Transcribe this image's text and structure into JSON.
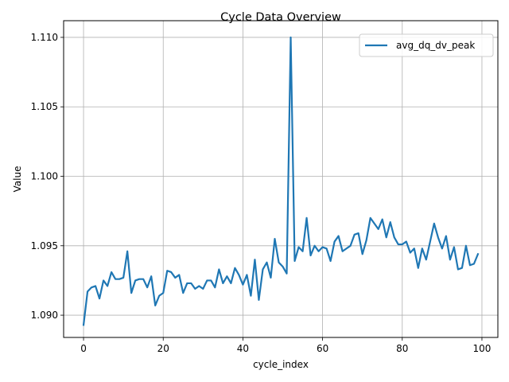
{
  "chart_data": {
    "type": "line",
    "title": "Cycle Data Overview",
    "xlabel": "cycle_index",
    "ylabel": "Value",
    "xlim": [
      -5,
      104
    ],
    "ylim": [
      1.0884,
      1.1112
    ],
    "xticks": [
      0,
      20,
      40,
      60,
      80,
      100
    ],
    "yticks": [
      1.09,
      1.095,
      1.1,
      1.105,
      1.11
    ],
    "ytick_labels": [
      "1.090",
      "1.095",
      "1.100",
      "1.105",
      "1.110"
    ],
    "grid": true,
    "legend_position": "top-right",
    "series": [
      {
        "name": "avg_dq_dv_peak",
        "color": "#1f77b4",
        "x": [
          0,
          1,
          2,
          3,
          4,
          5,
          6,
          7,
          8,
          9,
          10,
          11,
          12,
          13,
          14,
          15,
          16,
          17,
          18,
          19,
          20,
          21,
          22,
          23,
          24,
          25,
          26,
          27,
          28,
          29,
          30,
          31,
          32,
          33,
          34,
          35,
          36,
          37,
          38,
          39,
          40,
          41,
          42,
          43,
          44,
          45,
          46,
          47,
          48,
          49,
          50,
          51,
          52,
          53,
          54,
          55,
          56,
          57,
          58,
          59,
          60,
          61,
          62,
          63,
          64,
          65,
          66,
          67,
          68,
          69,
          70,
          71,
          72,
          73,
          74,
          75,
          76,
          77,
          78,
          79,
          80,
          81,
          82,
          83,
          84,
          85,
          86,
          87,
          88,
          89,
          90,
          91,
          92,
          93,
          94,
          95,
          96,
          97,
          98,
          99
        ],
        "values": [
          1.0893,
          1.0917,
          1.092,
          1.0921,
          1.0912,
          1.0925,
          1.0921,
          1.0931,
          1.0926,
          1.0926,
          1.0927,
          1.0946,
          1.0916,
          1.0925,
          1.0926,
          1.0926,
          1.092,
          1.0928,
          1.0907,
          1.0914,
          1.0916,
          1.0932,
          1.0931,
          1.0927,
          1.0929,
          1.0916,
          1.0923,
          1.0923,
          1.0919,
          1.0921,
          1.0919,
          1.0925,
          1.0925,
          1.092,
          1.0933,
          1.0923,
          1.0928,
          1.0923,
          1.0934,
          1.0929,
          1.0922,
          1.0929,
          1.0914,
          1.094,
          1.0911,
          1.0933,
          1.0938,
          1.0927,
          1.0955,
          1.0938,
          1.0935,
          1.093,
          1.11,
          1.0939,
          1.0949,
          1.0946,
          1.097,
          1.0943,
          1.095,
          1.0946,
          1.0949,
          1.0948,
          1.0939,
          1.0953,
          1.0957,
          1.0946,
          1.0948,
          1.095,
          1.0958,
          1.0959,
          1.0944,
          1.0954,
          1.097,
          1.0966,
          1.0962,
          1.0969,
          1.0956,
          1.0967,
          1.0956,
          1.0951,
          1.0951,
          1.0953,
          1.0945,
          1.0948,
          1.0934,
          1.0948,
          1.094,
          1.0953,
          1.0966,
          1.0956,
          1.0948,
          1.0957,
          1.094,
          1.0949,
          1.0933,
          1.0934,
          1.095,
          1.0936,
          1.0937,
          1.0944
        ]
      }
    ]
  }
}
